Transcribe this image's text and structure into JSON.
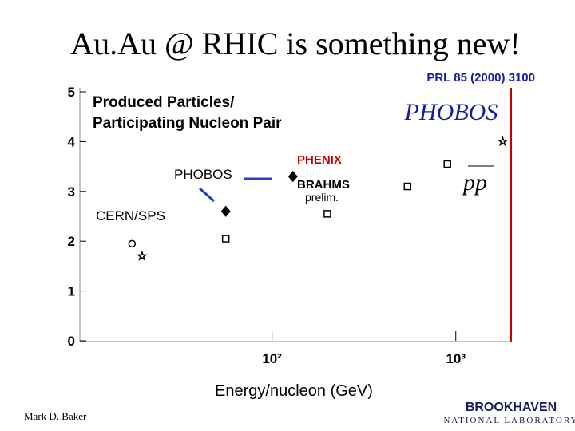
{
  "title": "Au.Au @ RHIC is something new!",
  "reference": "PRL 85 (2000) 3100",
  "logo": "PHOBOS",
  "footer": {
    "author": "Mark D. Baker",
    "org": "BROOKHAVEN",
    "org_sub": "NATIONAL LABORATORY"
  },
  "chart_data": {
    "type": "scatter",
    "y_label": [
      "Produced Particles/",
      "Participating Nucleon Pair"
    ],
    "x_label": "Energy/nucleon (GeV)",
    "x_log": true,
    "xlim": [
      9,
      2000
    ],
    "xticks": [
      {
        "value": 100,
        "label": "10²"
      },
      {
        "value": 1000,
        "label": "10³"
      }
    ],
    "ylim": [
      0,
      5
    ],
    "yticks": [
      0,
      1,
      2,
      3,
      4,
      5
    ],
    "annotations": [
      "PHOBOS",
      "PHENIX",
      "BRAHMS",
      "prelim.",
      "CERN/SPS",
      "pp"
    ],
    "series": [
      {
        "marker": "circle",
        "color": "#000000",
        "x": [
          17.3
        ],
        "values": [
          1.95
        ]
      },
      {
        "marker": "star",
        "color": "#000000",
        "x": [
          19.6,
          1800
        ],
        "values": [
          1.7,
          4.0
        ]
      },
      {
        "marker": "square",
        "color": "#000000",
        "x": [
          56,
          200,
          546,
          900
        ],
        "values": [
          2.05,
          2.55,
          3.1,
          3.55
        ]
      },
      {
        "marker": "diamond",
        "color": "#000000",
        "x": [
          56,
          130
        ],
        "values": [
          2.6,
          3.3
        ]
      }
    ]
  }
}
